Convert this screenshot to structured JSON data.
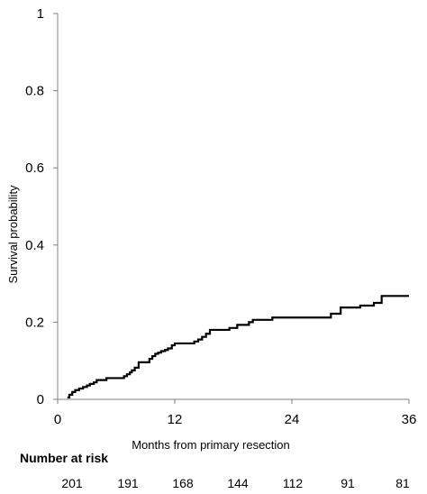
{
  "chart_data": {
    "type": "line",
    "title": "",
    "xlabel": "Months from primary resection",
    "ylabel": "Survival probability",
    "xlim": [
      0,
      36
    ],
    "ylim": [
      0,
      1
    ],
    "xticks": [
      0,
      12,
      24,
      36
    ],
    "yticks": [
      0,
      0.2,
      0.4,
      0.6,
      0.8,
      1
    ],
    "ytick_labels": [
      "0",
      "0.2",
      "0.4",
      "0.6",
      "0.8",
      "1"
    ],
    "grid": false,
    "step": true,
    "series": [
      {
        "name": "",
        "color": "#000000",
        "x": [
          1.0,
          1.2,
          1.5,
          1.8,
          2.2,
          2.6,
          3.0,
          3.3,
          3.7,
          4.0,
          5.0,
          5.4,
          6.8,
          7.1,
          7.4,
          7.6,
          7.9,
          8.3,
          8.6,
          9.4,
          9.7,
          10.0,
          10.3,
          10.6,
          11.0,
          11.3,
          11.7,
          12.0,
          14.0,
          14.4,
          14.8,
          15.2,
          15.6,
          17.6,
          18.4,
          19.6,
          20.0,
          22.0,
          28.0,
          29.0,
          31.0,
          32.4,
          33.2,
          34.0,
          36.0
        ],
        "y": [
          0.005,
          0.012,
          0.019,
          0.024,
          0.028,
          0.032,
          0.036,
          0.04,
          0.044,
          0.05,
          0.055,
          0.055,
          0.06,
          0.065,
          0.07,
          0.075,
          0.082,
          0.096,
          0.096,
          0.105,
          0.112,
          0.118,
          0.121,
          0.125,
          0.128,
          0.132,
          0.14,
          0.145,
          0.15,
          0.155,
          0.162,
          0.17,
          0.18,
          0.185,
          0.193,
          0.2,
          0.206,
          0.212,
          0.222,
          0.238,
          0.243,
          0.25,
          0.268,
          0.268,
          0.268
        ]
      }
    ]
  },
  "risk_table": {
    "header": "Number at risk",
    "values": [
      "201",
      "191",
      "168",
      "144",
      "112",
      "91",
      "81"
    ]
  }
}
